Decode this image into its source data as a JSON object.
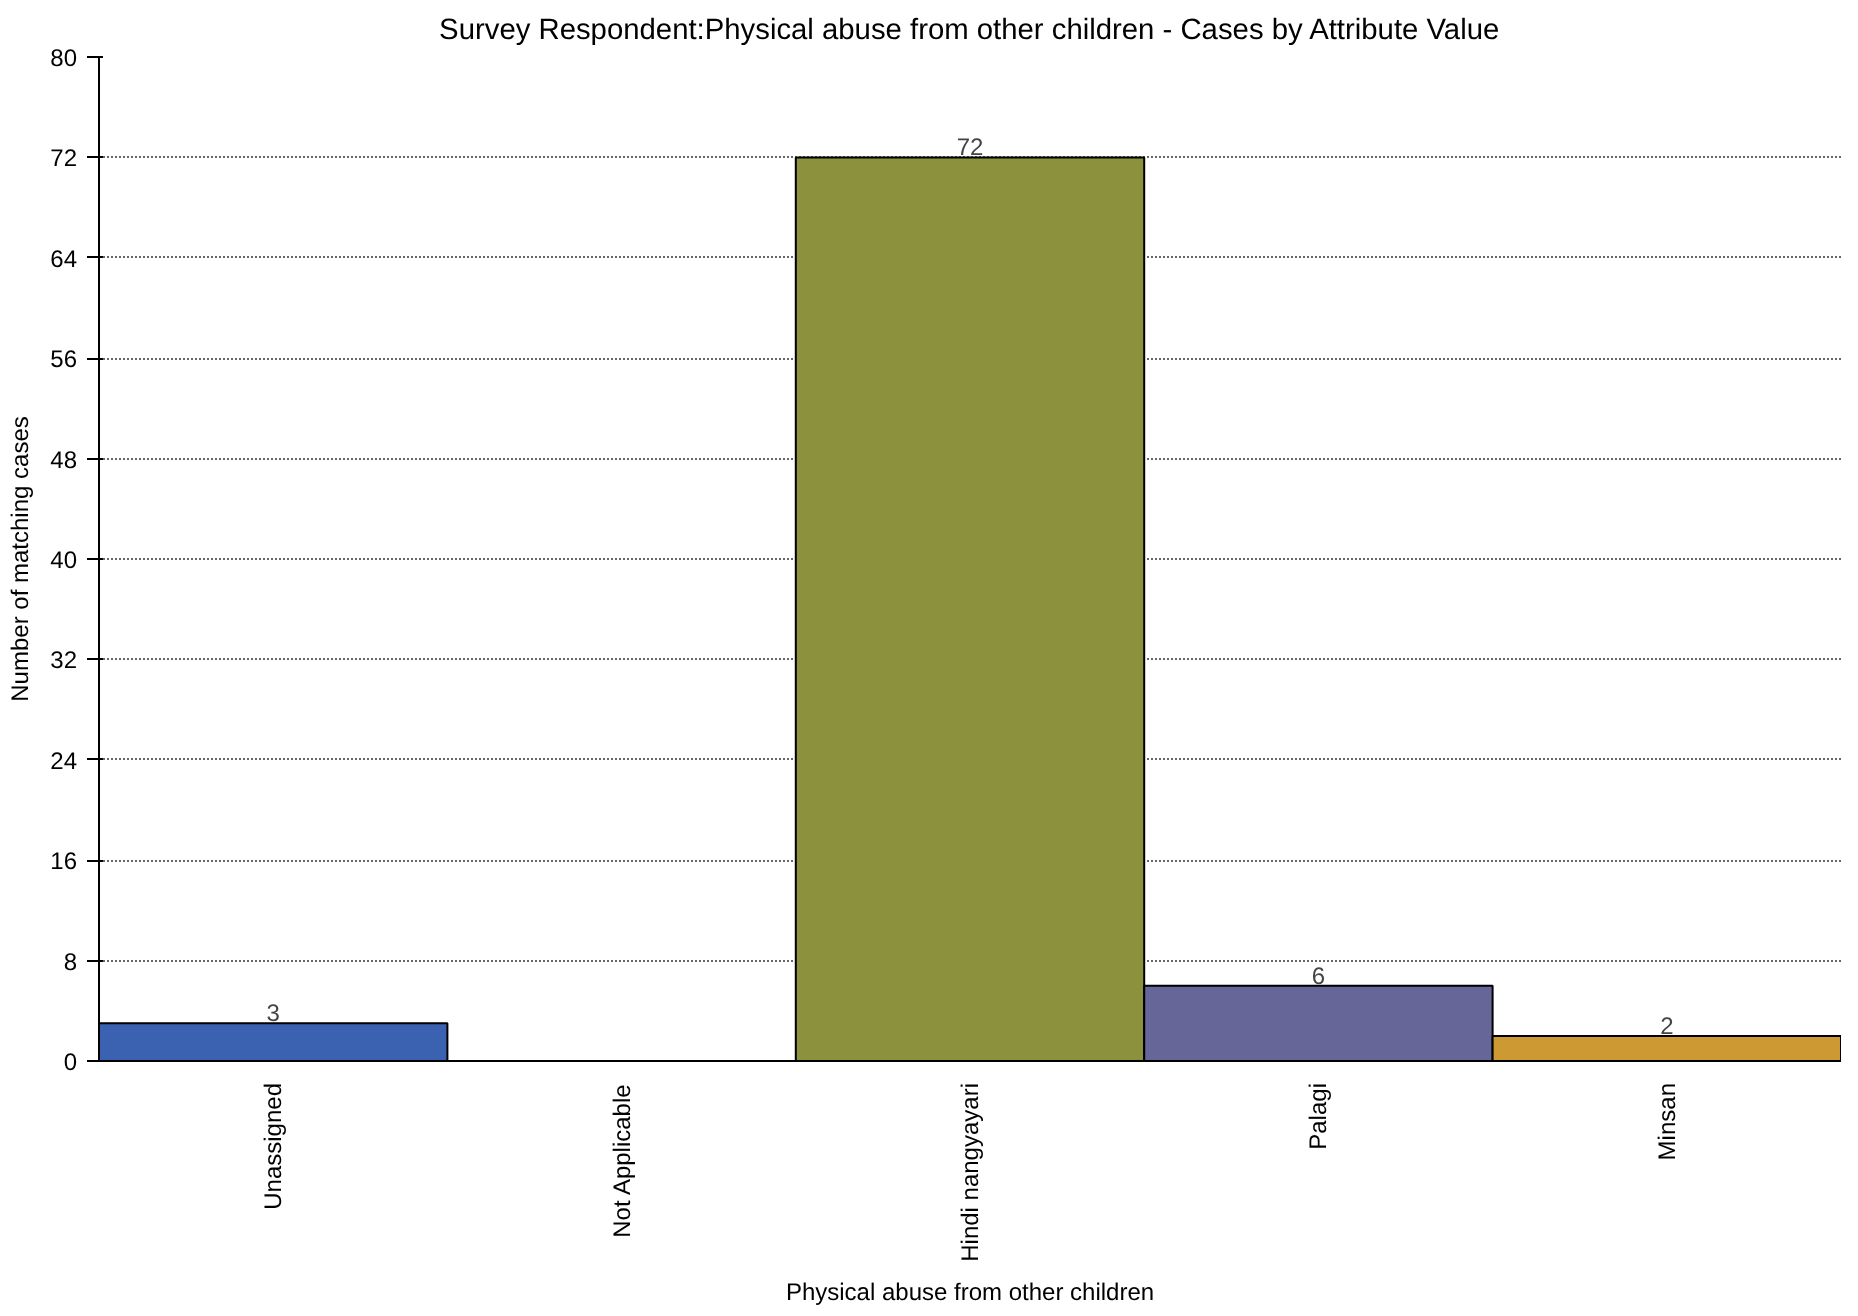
{
  "chart_data": {
    "type": "bar",
    "title": "Survey Respondent:Physical abuse from other children - Cases by Attribute Value",
    "xlabel": "Physical abuse from other children",
    "ylabel": "Number of matching cases",
    "categories": [
      "Unassigned",
      "Not Applicable",
      "Hindi nangyayari",
      "Palagi",
      "Minsan"
    ],
    "values": [
      3,
      0,
      72,
      6,
      2
    ],
    "colors": [
      "#3a62b0",
      "#000000",
      "#8b913c",
      "#666699",
      "#cc9933"
    ],
    "value_labels": [
      "3",
      null,
      "72",
      "6",
      "2"
    ],
    "ylim": [
      0,
      80
    ],
    "yticks": [
      0,
      8,
      16,
      24,
      32,
      40,
      48,
      56,
      64,
      72,
      80
    ],
    "grid": "y"
  }
}
